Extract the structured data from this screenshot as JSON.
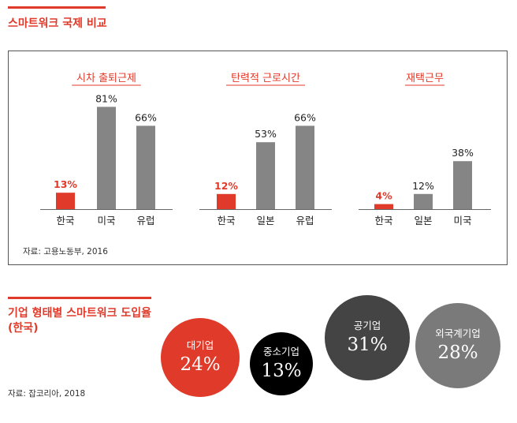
{
  "section1": {
    "title": "스마트워크 국제 비교",
    "source": "자료: 고용노동부, 2016"
  },
  "section2": {
    "title_line1": "기업 형태별 스마트워크 도입율",
    "title_line2": "(한국)",
    "source": "자료: 잡코리아, 2018"
  },
  "colors": {
    "accent": "#e03a2a",
    "bar_gray": "#858585",
    "dark_gray": "#444444",
    "black": "#000000",
    "mid_gray": "#7a7a7a"
  },
  "chart_data": [
    {
      "type": "bar",
      "title": "시차 출퇴근제",
      "categories": [
        "한국",
        "미국",
        "유럽"
      ],
      "values": [
        13,
        81,
        66
      ],
      "labels": [
        "13%",
        "81%",
        "66%"
      ],
      "highlight": [
        true,
        false,
        false
      ],
      "ylim": [
        0,
        100
      ]
    },
    {
      "type": "bar",
      "title": "탄력적 근로시간",
      "categories": [
        "한국",
        "일본",
        "유럽"
      ],
      "values": [
        12,
        53,
        66
      ],
      "labels": [
        "12%",
        "53%",
        "66%"
      ],
      "highlight": [
        true,
        false,
        false
      ],
      "ylim": [
        0,
        100
      ]
    },
    {
      "type": "bar",
      "title": "재택근무",
      "categories": [
        "한국",
        "일본",
        "미국"
      ],
      "values": [
        4,
        12,
        38
      ],
      "labels": [
        "4%",
        "12%",
        "38%"
      ],
      "highlight": [
        true,
        false,
        false
      ],
      "ylim": [
        0,
        100
      ]
    },
    {
      "type": "bubble",
      "categories": [
        "대기업",
        "중소기업",
        "공기업",
        "외국계기업"
      ],
      "values": [
        24,
        13,
        31,
        28
      ],
      "labels": [
        "24%",
        "13%",
        "31%",
        "28%"
      ]
    }
  ]
}
